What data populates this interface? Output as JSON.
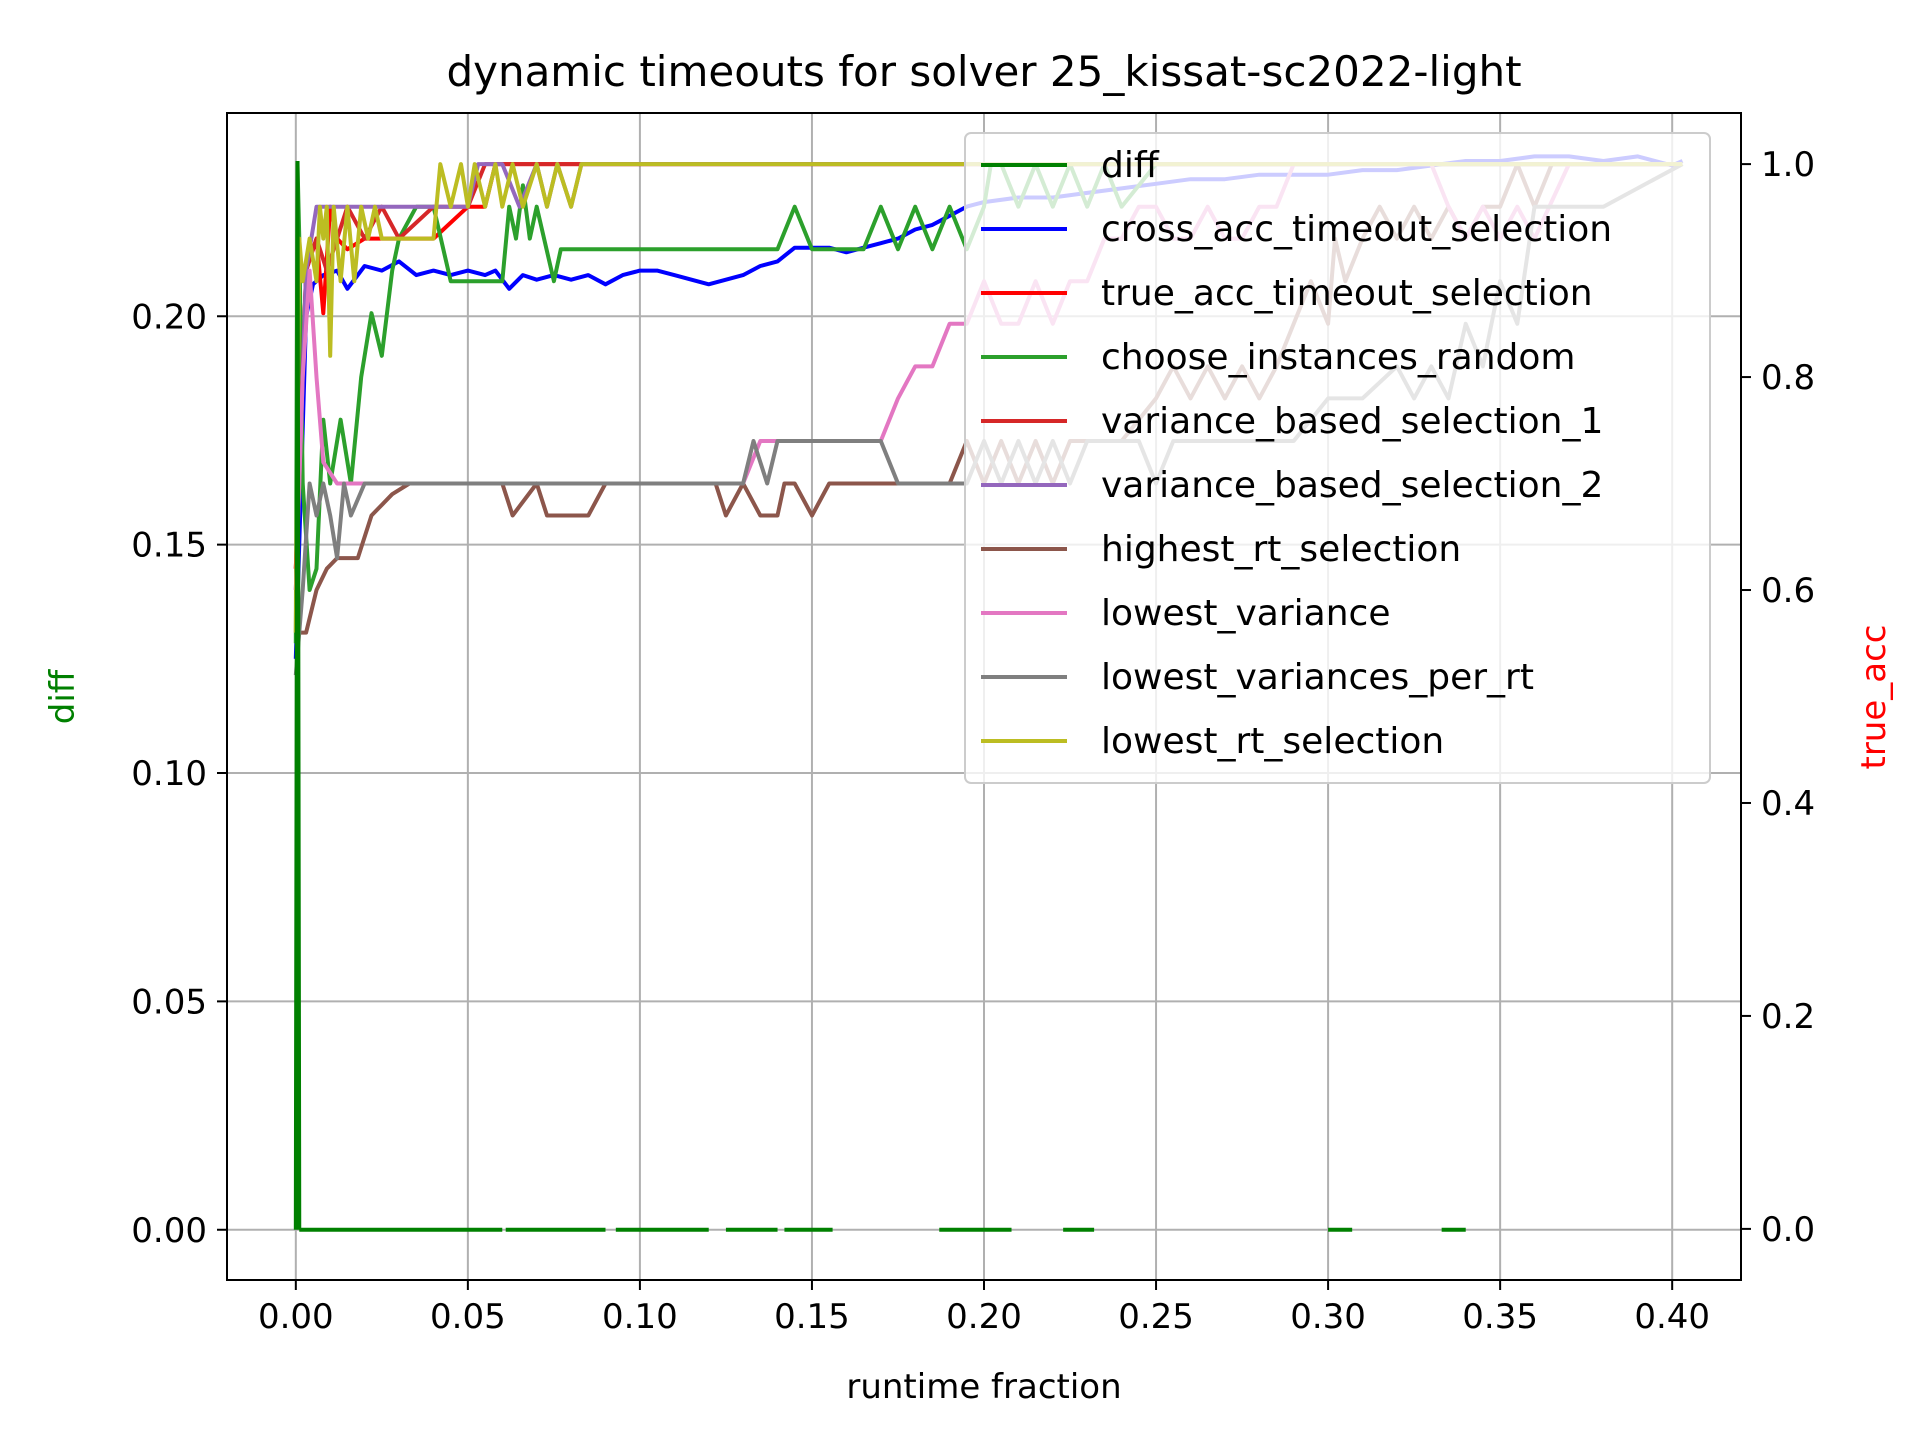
{
  "chart_data": {
    "type": "line",
    "title": "dynamic timeouts for solver 25_kissat-sc2022-light",
    "xlabel": "runtime fraction",
    "ylabel_left": "diff",
    "ylabel_right": "true_acc",
    "xlim": [
      -0.02,
      0.42
    ],
    "ylim_left": [
      -0.011,
      0.2445
    ],
    "ylim_right": [
      -0.048,
      1.048
    ],
    "x_ticks": [
      "0.00",
      "0.05",
      "0.10",
      "0.15",
      "0.20",
      "0.25",
      "0.30",
      "0.35",
      "0.40"
    ],
    "y_left_ticks": [
      "0.00",
      "0.05",
      "0.10",
      "0.15",
      "0.20"
    ],
    "y_right_ticks": [
      "0.0",
      "0.2",
      "0.4",
      "0.6",
      "0.8",
      "1.0"
    ],
    "grid": true,
    "legend_position": "top-right",
    "colors": {
      "diff": "#008000",
      "cross_acc_timeout_selection": "#0000ff",
      "true_acc_timeout_selection": "#ff0000",
      "choose_instances_random": "#2ca02c",
      "variance_based_selection_1": "#d62728",
      "variance_based_selection_2": "#9467bd",
      "highest_rt_selection": "#8c564b",
      "lowest_variance": "#e377c2",
      "lowest_variances_per_rt": "#7f7f7f",
      "lowest_rt_selection": "#bcbd22"
    },
    "series": [
      {
        "name": "diff",
        "axis": "left",
        "dashed": true,
        "x": [
          0,
          0.0005,
          0.001,
          0.06,
          0.061,
          0.09,
          0.093,
          0.12,
          0.125,
          0.14,
          0.142,
          0.156,
          0.187,
          0.208,
          0.223,
          0.232,
          0.3,
          0.307,
          0.333,
          0.34
        ],
        "y": [
          0.0,
          0.234,
          0.0,
          0.0,
          0.0,
          0.0,
          0.0,
          0.0,
          0.0,
          0.0,
          0.0,
          0.0,
          0.0,
          0.0,
          0.0,
          0.0,
          0.0,
          0.0,
          0.0,
          0.0
        ],
        "segments": [
          [
            0.001,
            0.06
          ],
          [
            0.061,
            0.09
          ],
          [
            0.093,
            0.12
          ],
          [
            0.125,
            0.14
          ],
          [
            0.142,
            0.156
          ],
          [
            0.187,
            0.208
          ],
          [
            0.223,
            0.232
          ],
          [
            0.3,
            0.307
          ],
          [
            0.333,
            0.34
          ]
        ]
      },
      {
        "name": "cross_acc_timeout_selection",
        "axis": "left",
        "x": [
          0.0,
          0.003,
          0.005,
          0.008,
          0.012,
          0.015,
          0.02,
          0.025,
          0.03,
          0.035,
          0.04,
          0.045,
          0.05,
          0.055,
          0.058,
          0.062,
          0.066,
          0.07,
          0.075,
          0.08,
          0.085,
          0.09,
          0.095,
          0.1,
          0.105,
          0.11,
          0.115,
          0.12,
          0.125,
          0.13,
          0.135,
          0.14,
          0.145,
          0.15,
          0.155,
          0.16,
          0.165,
          0.17,
          0.175,
          0.18,
          0.185,
          0.19,
          0.195,
          0.2,
          0.21,
          0.22,
          0.23,
          0.24,
          0.25,
          0.26,
          0.27,
          0.28,
          0.29,
          0.3,
          0.31,
          0.32,
          0.33,
          0.34,
          0.35,
          0.36,
          0.37,
          0.38,
          0.39,
          0.4,
          0.403
        ],
        "y": [
          0.125,
          0.2,
          0.207,
          0.209,
          0.21,
          0.206,
          0.211,
          0.21,
          0.212,
          0.209,
          0.21,
          0.209,
          0.21,
          0.209,
          0.21,
          0.206,
          0.209,
          0.208,
          0.209,
          0.208,
          0.209,
          0.207,
          0.209,
          0.21,
          0.21,
          0.209,
          0.208,
          0.207,
          0.208,
          0.209,
          0.211,
          0.212,
          0.215,
          0.215,
          0.215,
          0.214,
          0.215,
          0.216,
          0.217,
          0.219,
          0.22,
          0.222,
          0.224,
          0.225,
          0.226,
          0.226,
          0.227,
          0.228,
          0.229,
          0.23,
          0.23,
          0.231,
          0.231,
          0.231,
          0.232,
          0.232,
          0.233,
          0.234,
          0.234,
          0.235,
          0.235,
          0.234,
          0.235,
          0.233,
          0.234
        ]
      },
      {
        "name": "true_acc_timeout_selection",
        "axis": "right",
        "x": [
          0.0,
          0.003,
          0.006,
          0.008,
          0.01,
          0.012,
          0.015,
          0.02,
          0.03,
          0.04,
          0.05,
          0.055,
          0.058,
          0.06,
          0.403
        ],
        "y": [
          0.62,
          0.9,
          0.93,
          0.86,
          0.96,
          0.93,
          0.92,
          0.93,
          0.93,
          0.93,
          0.96,
          0.96,
          1.0,
          1.0,
          1.0
        ]
      },
      {
        "name": "choose_instances_random",
        "axis": "right",
        "x": [
          0.0,
          0.0005,
          0.001,
          0.002,
          0.004,
          0.006,
          0.008,
          0.01,
          0.013,
          0.016,
          0.019,
          0.022,
          0.025,
          0.028,
          0.03,
          0.035,
          0.04,
          0.045,
          0.06,
          0.062,
          0.064,
          0.066,
          0.068,
          0.07,
          0.075,
          0.077,
          0.08,
          0.14,
          0.145,
          0.15,
          0.165,
          0.17,
          0.175,
          0.18,
          0.185,
          0.19,
          0.195,
          0.2,
          0.202,
          0.205,
          0.21,
          0.215,
          0.22,
          0.225,
          0.23,
          0.235,
          0.24,
          0.25,
          0.403
        ],
        "y": [
          0.55,
          1.0,
          0.93,
          0.7,
          0.6,
          0.62,
          0.76,
          0.7,
          0.76,
          0.7,
          0.8,
          0.86,
          0.82,
          0.9,
          0.93,
          0.96,
          0.96,
          0.89,
          0.89,
          0.96,
          0.93,
          0.98,
          0.93,
          0.96,
          0.89,
          0.92,
          0.92,
          0.92,
          0.96,
          0.92,
          0.92,
          0.96,
          0.92,
          0.96,
          0.92,
          0.96,
          0.92,
          0.96,
          1.0,
          1.0,
          0.96,
          1.0,
          0.96,
          1.0,
          0.96,
          1.0,
          0.96,
          1.0,
          1.0
        ]
      },
      {
        "name": "variance_based_selection_1",
        "axis": "right",
        "x": [
          0.0,
          0.003,
          0.006,
          0.009,
          0.012,
          0.015,
          0.02,
          0.025,
          0.03,
          0.04,
          0.05,
          0.055,
          0.06,
          0.403
        ],
        "y": [
          0.62,
          0.9,
          0.93,
          0.9,
          0.93,
          0.96,
          0.93,
          0.96,
          0.93,
          0.96,
          0.96,
          1.0,
          1.0,
          1.0
        ]
      },
      {
        "name": "variance_based_selection_2",
        "axis": "right",
        "x": [
          0.0,
          0.003,
          0.006,
          0.01,
          0.02,
          0.03,
          0.04,
          0.05,
          0.053,
          0.06,
          0.065,
          0.07,
          0.073,
          0.076,
          0.08,
          0.083,
          0.403
        ],
        "y": [
          0.6,
          0.9,
          0.96,
          0.96,
          0.96,
          0.96,
          0.96,
          0.96,
          1.0,
          1.0,
          0.96,
          1.0,
          0.96,
          1.0,
          0.96,
          1.0,
          1.0
        ]
      },
      {
        "name": "highest_rt_selection",
        "axis": "right",
        "x": [
          0.0,
          0.003,
          0.006,
          0.009,
          0.012,
          0.018,
          0.022,
          0.028,
          0.033,
          0.06,
          0.063,
          0.07,
          0.073,
          0.078,
          0.085,
          0.09,
          0.122,
          0.125,
          0.13,
          0.135,
          0.14,
          0.142,
          0.145,
          0.15,
          0.155,
          0.16,
          0.17,
          0.19,
          0.195,
          0.2,
          0.205,
          0.21,
          0.215,
          0.22,
          0.225,
          0.23,
          0.24,
          0.25,
          0.255,
          0.26,
          0.265,
          0.27,
          0.275,
          0.28,
          0.285,
          0.29,
          0.295,
          0.3,
          0.302,
          0.305,
          0.31,
          0.315,
          0.32,
          0.325,
          0.33,
          0.335,
          0.34,
          0.345,
          0.35,
          0.355,
          0.36,
          0.365,
          0.37,
          0.375,
          0.38,
          0.403
        ],
        "y": [
          0.56,
          0.56,
          0.6,
          0.62,
          0.63,
          0.63,
          0.67,
          0.69,
          0.7,
          0.7,
          0.67,
          0.7,
          0.67,
          0.67,
          0.67,
          0.7,
          0.7,
          0.67,
          0.7,
          0.67,
          0.67,
          0.7,
          0.7,
          0.67,
          0.7,
          0.7,
          0.7,
          0.7,
          0.74,
          0.7,
          0.74,
          0.7,
          0.74,
          0.7,
          0.74,
          0.74,
          0.74,
          0.78,
          0.81,
          0.78,
          0.81,
          0.78,
          0.81,
          0.78,
          0.81,
          0.85,
          0.89,
          0.85,
          0.93,
          0.89,
          0.93,
          0.96,
          0.93,
          0.96,
          0.93,
          0.96,
          0.93,
          0.96,
          0.96,
          1.0,
          0.96,
          1.0,
          1.0,
          1.0,
          1.0,
          1.0
        ]
      },
      {
        "name": "lowest_variance",
        "axis": "right",
        "x": [
          0.0,
          0.002,
          0.004,
          0.006,
          0.008,
          0.012,
          0.018,
          0.03,
          0.13,
          0.135,
          0.17,
          0.175,
          0.18,
          0.185,
          0.19,
          0.195,
          0.2,
          0.205,
          0.21,
          0.215,
          0.22,
          0.225,
          0.23,
          0.235,
          0.24,
          0.245,
          0.25,
          0.255,
          0.26,
          0.265,
          0.27,
          0.275,
          0.28,
          0.285,
          0.29,
          0.31,
          0.33,
          0.335,
          0.34,
          0.345,
          0.35,
          0.355,
          0.36,
          0.37,
          0.403
        ],
        "y": [
          0.6,
          0.8,
          0.9,
          0.8,
          0.72,
          0.7,
          0.7,
          0.7,
          0.7,
          0.74,
          0.74,
          0.78,
          0.81,
          0.81,
          0.85,
          0.85,
          0.89,
          0.85,
          0.85,
          0.89,
          0.85,
          0.89,
          0.89,
          0.93,
          0.93,
          0.96,
          0.96,
          0.93,
          0.93,
          0.96,
          0.93,
          0.93,
          0.96,
          0.96,
          1.0,
          1.0,
          1.0,
          0.96,
          0.93,
          0.96,
          0.93,
          0.96,
          0.93,
          1.0,
          1.0
        ]
      },
      {
        "name": "lowest_variances_per_rt",
        "axis": "right",
        "x": [
          0.0,
          0.002,
          0.004,
          0.006,
          0.008,
          0.01,
          0.012,
          0.014,
          0.016,
          0.02,
          0.03,
          0.13,
          0.133,
          0.137,
          0.14,
          0.145,
          0.17,
          0.175,
          0.18,
          0.195,
          0.2,
          0.205,
          0.21,
          0.215,
          0.22,
          0.225,
          0.23,
          0.245,
          0.25,
          0.255,
          0.29,
          0.3,
          0.31,
          0.32,
          0.325,
          0.33,
          0.335,
          0.34,
          0.345,
          0.35,
          0.355,
          0.36,
          0.38,
          0.403
        ],
        "y": [
          0.52,
          0.6,
          0.7,
          0.67,
          0.7,
          0.67,
          0.63,
          0.7,
          0.67,
          0.7,
          0.7,
          0.7,
          0.74,
          0.7,
          0.74,
          0.74,
          0.74,
          0.7,
          0.7,
          0.7,
          0.74,
          0.7,
          0.74,
          0.7,
          0.74,
          0.7,
          0.74,
          0.74,
          0.7,
          0.74,
          0.74,
          0.78,
          0.78,
          0.81,
          0.78,
          0.81,
          0.78,
          0.85,
          0.81,
          0.89,
          0.85,
          0.96,
          0.96,
          1.0
        ]
      },
      {
        "name": "lowest_rt_selection",
        "axis": "right",
        "x": [
          0.0,
          0.001,
          0.002,
          0.004,
          0.006,
          0.007,
          0.008,
          0.009,
          0.01,
          0.011,
          0.013,
          0.015,
          0.017,
          0.019,
          0.021,
          0.023,
          0.025,
          0.027,
          0.03,
          0.04,
          0.042,
          0.045,
          0.048,
          0.05,
          0.052,
          0.055,
          0.058,
          0.06,
          0.063,
          0.066,
          0.07,
          0.073,
          0.076,
          0.08,
          0.083,
          0.403
        ],
        "y": [
          0.56,
          0.93,
          0.89,
          0.93,
          0.89,
          0.96,
          0.93,
          0.96,
          0.82,
          0.96,
          0.89,
          0.96,
          0.89,
          0.96,
          0.93,
          0.96,
          0.93,
          0.93,
          0.93,
          0.93,
          1.0,
          0.96,
          1.0,
          0.96,
          1.0,
          0.96,
          1.0,
          0.96,
          1.0,
          0.96,
          1.0,
          0.96,
          1.0,
          0.96,
          1.0,
          1.0
        ]
      }
    ]
  }
}
